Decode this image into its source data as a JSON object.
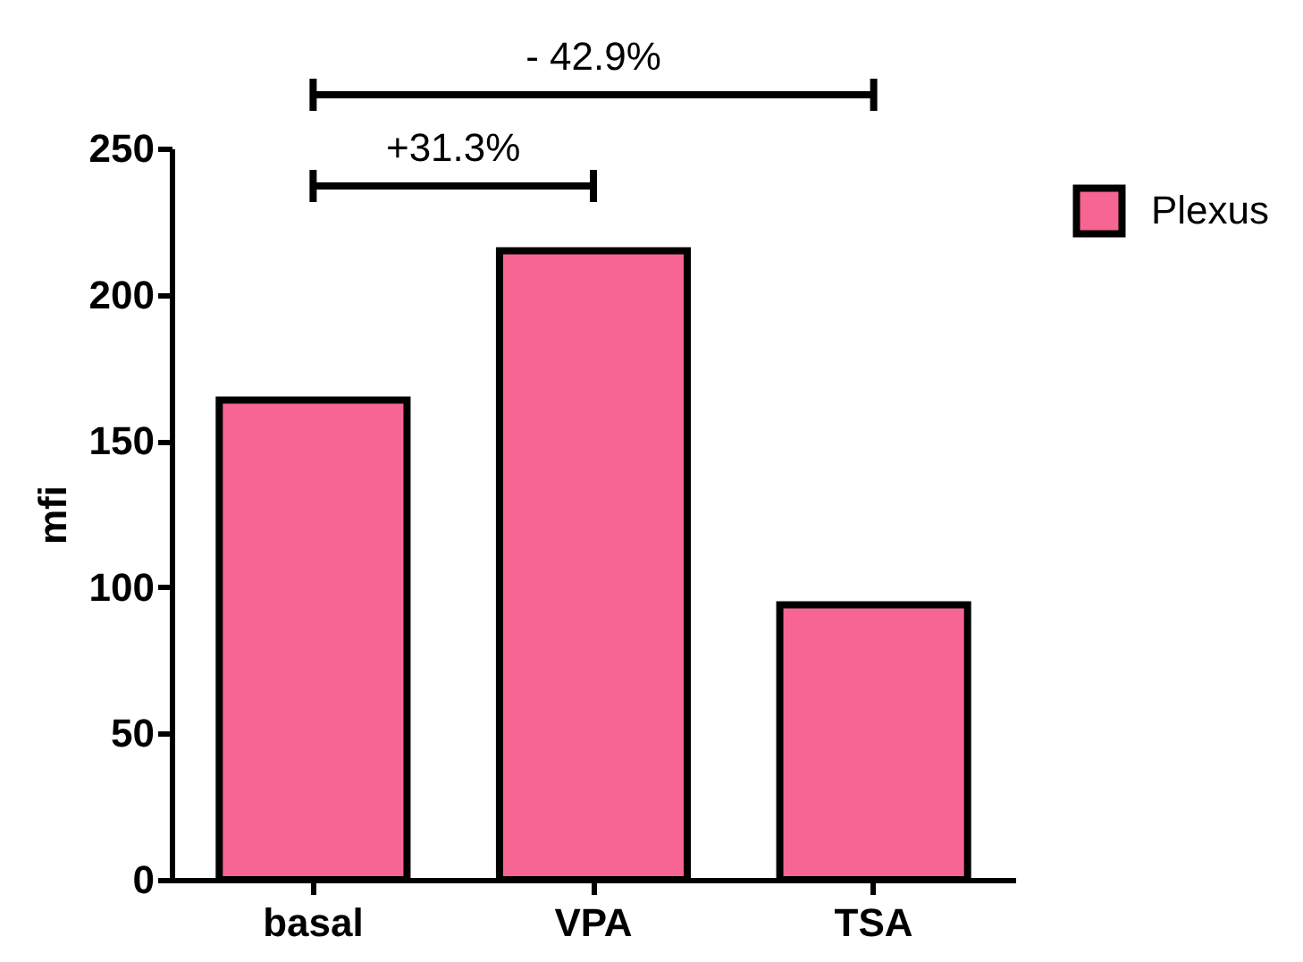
{
  "chart_data": {
    "type": "bar",
    "categories": [
      "basal",
      "VPA",
      "TSA"
    ],
    "series": [
      {
        "name": "Plexus",
        "color": "#f76592",
        "values": [
          164,
          215,
          94
        ]
      }
    ],
    "ylabel": "mfi",
    "ylim": [
      0,
      250
    ],
    "yticks": [
      0,
      50,
      100,
      150,
      200,
      250
    ],
    "legend": "top right",
    "annotations": [
      "- 42.9%",
      "+31.3%"
    ]
  }
}
